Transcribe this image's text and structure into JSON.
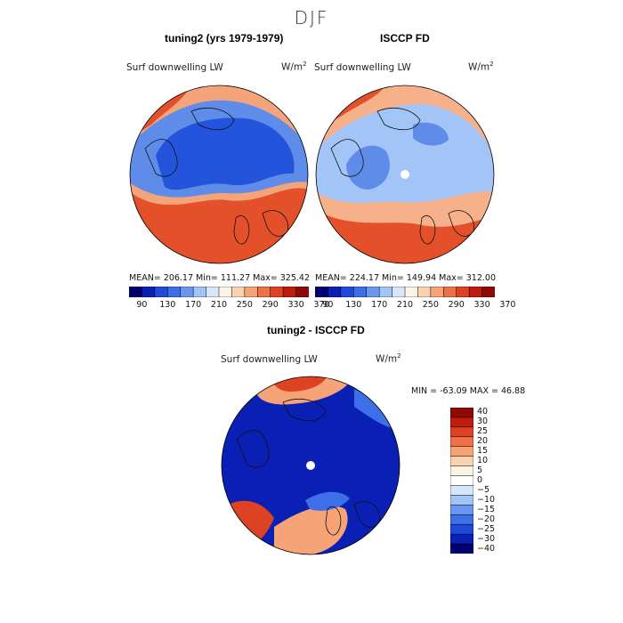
{
  "figure_title": "DJF",
  "chart_data": [
    {
      "type": "map-contour",
      "title": "tuning2 (yrs 1979-1979)",
      "variable_label": "Surf downwelling LW",
      "units_label": "W/m",
      "units_power": "2",
      "stats": {
        "mean": "206.17",
        "min": "111.27",
        "max": "325.42"
      },
      "stats_text": "MEAN=  206.17     Min=  111.27     Max=  325.42",
      "colorbar_ticks": [
        "90",
        "130",
        "170",
        "210",
        "250",
        "290",
        "330",
        "370"
      ],
      "colorbar_colors": [
        "#00006e",
        "#0a1fb4",
        "#1f4ad9",
        "#3d6fe8",
        "#6a96f0",
        "#a3c4f7",
        "#d7e6fb",
        "#fdf3e4",
        "#fbd2b0",
        "#f6a477",
        "#ee7149",
        "#dd4222",
        "#bd1c0e",
        "#8e0a07"
      ],
      "palette": {
        "cold": "#2454dc",
        "mid": "#5f8ce8",
        "warm": "#f4a47a",
        "hot": "#e3502a"
      }
    },
    {
      "type": "map-contour",
      "title": "ISCCP FD",
      "variable_label": "Surf downwelling LW",
      "units_label": "W/m",
      "units_power": "2",
      "stats": {
        "mean": "224.17",
        "min": "149.94",
        "max": "312.00"
      },
      "stats_text": "MEAN=  224.17     Min=  149.94     Max=  312.00",
      "colorbar_ticks": [
        "90",
        "130",
        "170",
        "210",
        "250",
        "290",
        "330",
        "370"
      ],
      "colorbar_colors": [
        "#00006e",
        "#0a1fb4",
        "#1f4ad9",
        "#3d6fe8",
        "#6a96f0",
        "#a3c4f7",
        "#d7e6fb",
        "#fdf3e4",
        "#fbd2b0",
        "#f6a477",
        "#ee7149",
        "#dd4222",
        "#bd1c0e",
        "#8e0a07"
      ],
      "palette": {
        "cold": "#5f8ce8",
        "mid": "#a3c4f7",
        "warm": "#f6b08a",
        "hot": "#e3502a"
      }
    },
    {
      "type": "map-contour",
      "title": "tuning2 - ISCCP FD",
      "variable_label": "Surf downwelling LW",
      "units_label": "W/m",
      "units_power": "2",
      "stats": {
        "min": "-63.09",
        "max": "46.88"
      },
      "stats_text": "MIN = -63.09  MAX =   46.88",
      "colorbar_ticks": [
        "40",
        "30",
        "25",
        "20",
        "15",
        "10",
        "5",
        "0",
        "-5",
        "-10",
        "-15",
        "-20",
        "-25",
        "-30",
        "-40"
      ],
      "colorbar_colors": [
        "#8e0a07",
        "#bd1c0e",
        "#dd4222",
        "#ee7149",
        "#f6a477",
        "#fbd2b0",
        "#fdf3e4",
        "#ffffff",
        "#d7e6fb",
        "#a3c4f7",
        "#6a96f0",
        "#3d6fe8",
        "#1f4ad9",
        "#0a1fb4",
        "#00006e"
      ],
      "palette": {
        "cold": "#0a1fb4",
        "mid": "#3d6fe8",
        "warm": "#f6a477",
        "hot": "#dd4222"
      }
    }
  ]
}
